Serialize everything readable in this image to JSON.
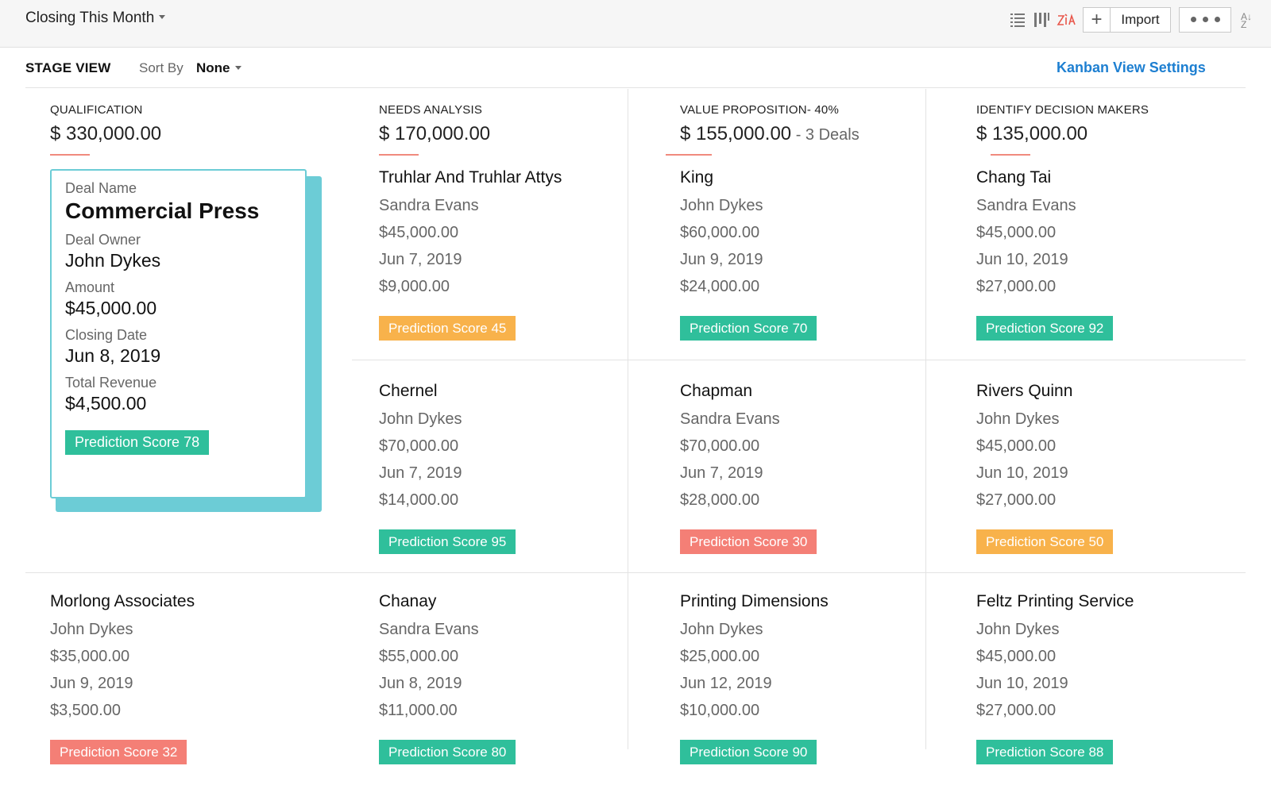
{
  "header": {
    "view_title": "Closing This Month",
    "icons": [
      "list-view-icon",
      "kanban-view-icon",
      "zia-icon"
    ],
    "plus_label": "+",
    "import_label": "Import",
    "sort_icon_text": "A↓Z"
  },
  "subheader": {
    "stage_view": "STAGE VIEW",
    "sort_by_label": "Sort By",
    "sort_by_value": "None",
    "kanban_settings": "Kanban View Settings"
  },
  "stages": [
    {
      "title": "QUALIFICATION",
      "amount": "$ 330,000.00",
      "deals_text": ""
    },
    {
      "title": "NEEDS ANALYSIS",
      "amount": "$ 170,000.00",
      "deals_text": ""
    },
    {
      "title": "VALUE PROPOSITION- 40%",
      "amount": "$ 155,000.00",
      "deals_text": " - 3 Deals"
    },
    {
      "title": "IDENTIFY DECISION MAKERS",
      "amount": "$ 135,000.00",
      "deals_text": ""
    }
  ],
  "highlight_card": {
    "deal_name_label": "Deal Name",
    "deal_name": "Commercial Press",
    "deal_owner_label": "Deal Owner",
    "deal_owner": "John Dykes",
    "amount_label": "Amount",
    "amount": "$45,000.00",
    "closing_date_label": "Closing Date",
    "closing_date": "Jun 8, 2019",
    "total_revenue_label": "Total Revenue",
    "total_revenue": "$4,500.00",
    "badge": "Prediction Score 78"
  },
  "deals": [
    {
      "name": "Truhlar And Truhlar Attys",
      "owner": "Sandra Evans",
      "amount": "$45,000.00",
      "date": "Jun 7, 2019",
      "revenue": "$9,000.00",
      "badge": "Prediction Score 45",
      "color": "#f8b24b"
    },
    {
      "name": "King",
      "owner": "John Dykes",
      "amount": "$60,000.00",
      "date": "Jun 9, 2019",
      "revenue": "$24,000.00",
      "badge": "Prediction Score 70",
      "color": "#2fbf9b"
    },
    {
      "name": "Chang Tai",
      "owner": "Sandra Evans",
      "amount": "$45,000.00",
      "date": "Jun 10, 2019",
      "revenue": "$27,000.00",
      "badge": "Prediction Score 92",
      "color": "#2fbf9b"
    },
    {
      "name": "Chernel",
      "owner": "John Dykes",
      "amount": "$70,000.00",
      "date": "Jun 7, 2019",
      "revenue": "$14,000.00",
      "badge": "Prediction Score 95",
      "color": "#2fbf9b"
    },
    {
      "name": "Chapman",
      "owner": "Sandra Evans",
      "amount": "$70,000.00",
      "date": "Jun 7, 2019",
      "revenue": "$28,000.00",
      "badge": "Prediction Score 30",
      "color": "#f47f76"
    },
    {
      "name": "Rivers Quinn",
      "owner": "John Dykes",
      "amount": "$45,000.00",
      "date": "Jun 10, 2019",
      "revenue": "$27,000.00",
      "badge": "Prediction Score 50",
      "color": "#f8b24b"
    },
    {
      "name": "Morlong Associates",
      "owner": "John Dykes",
      "amount": "$35,000.00",
      "date": "Jun 9, 2019",
      "revenue": "$3,500.00",
      "badge": "Prediction Score 32",
      "color": "#f47f76"
    },
    {
      "name": "Chanay",
      "owner": "Sandra Evans",
      "amount": "$55,000.00",
      "date": "Jun 8, 2019",
      "revenue": "$11,000.00",
      "badge": "Prediction Score 80",
      "color": "#2fbf9b"
    },
    {
      "name": "Printing Dimensions",
      "owner": "John Dykes",
      "amount": "$25,000.00",
      "date": "Jun 12, 2019",
      "revenue": "$10,000.00",
      "badge": "Prediction Score 90",
      "color": "#2fbf9b"
    },
    {
      "name": "Feltz Printing Service",
      "owner": "John Dykes",
      "amount": "$45,000.00",
      "date": "Jun 10, 2019",
      "revenue": "$27,000.00",
      "badge": "Prediction Score 88",
      "color": "#2fbf9b"
    }
  ]
}
